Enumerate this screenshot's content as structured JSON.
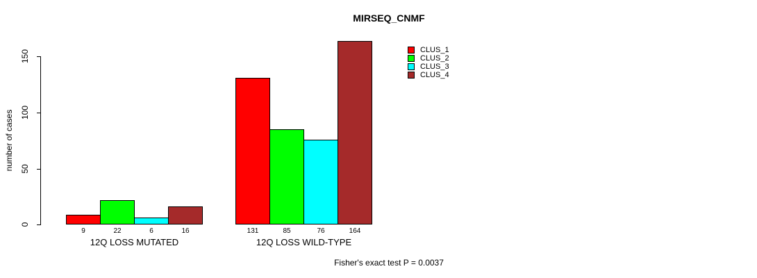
{
  "title": "MIRSEQ_CNMF",
  "footer": "Fisher's exact test P = 0.0037",
  "chart_data": {
    "type": "bar",
    "title": "MIRSEQ_CNMF",
    "xlabel": "",
    "ylabel": "number of cases",
    "yticks": [
      0,
      50,
      100,
      150
    ],
    "ylim": [
      0,
      164
    ],
    "grid": false,
    "legend_position": "top-right",
    "categories": [
      "12Q LOSS MUTATED",
      "12Q LOSS WILD-TYPE"
    ],
    "series": [
      {
        "name": "CLUS_1",
        "color": "#ff0000",
        "values": [
          9,
          131
        ]
      },
      {
        "name": "CLUS_2",
        "color": "#00ff00",
        "values": [
          22,
          85
        ]
      },
      {
        "name": "CLUS_3",
        "color": "#00ffff",
        "values": [
          6,
          76
        ]
      },
      {
        "name": "CLUS_4",
        "color": "#a52a2a",
        "values": [
          16,
          164
        ]
      }
    ],
    "bar_value_labels_shown": true,
    "annotation": "Fisher's exact test P = 0.0037"
  }
}
